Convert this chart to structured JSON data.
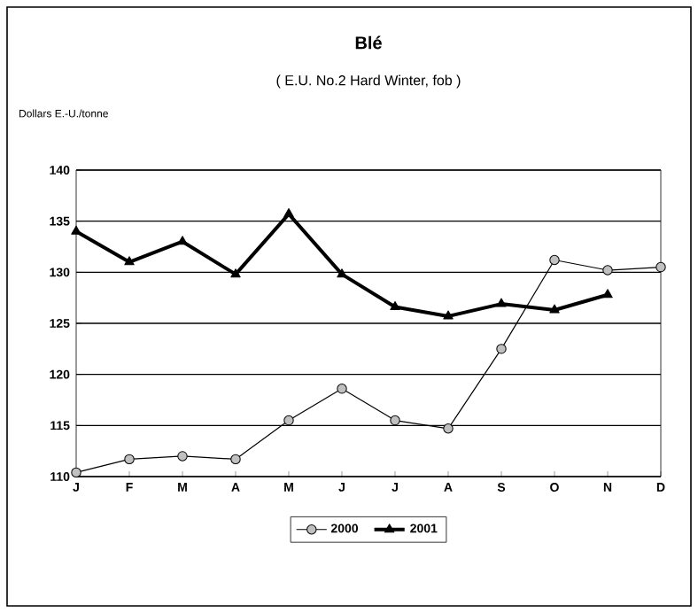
{
  "chart_data": {
    "type": "line",
    "title": "Blé",
    "subtitle": "( E.U. No.2 Hard Winter, fob )",
    "ylabel": "Dollars E.-U./tonne",
    "categories": [
      "J",
      "F",
      "M",
      "A",
      "M",
      "J",
      "J",
      "A",
      "S",
      "O",
      "N",
      "D"
    ],
    "series": [
      {
        "name": "2000",
        "color": "#c0c0c0",
        "marker": "circle",
        "values": [
          110.4,
          111.7,
          112,
          111.7,
          115.5,
          118.6,
          115.5,
          114.7,
          122.5,
          131.2,
          130.2,
          130.5
        ]
      },
      {
        "name": "2001",
        "color": "#000000",
        "marker": "triangle",
        "values": [
          134,
          131,
          133,
          129.8,
          135.7,
          129.8,
          126.6,
          125.7,
          126.9,
          126.3,
          127.8,
          null
        ]
      }
    ],
    "ylim": [
      110,
      140
    ],
    "yticks": [
      110,
      115,
      120,
      125,
      130,
      135,
      140
    ],
    "grid": "y",
    "legend": "bottom"
  }
}
